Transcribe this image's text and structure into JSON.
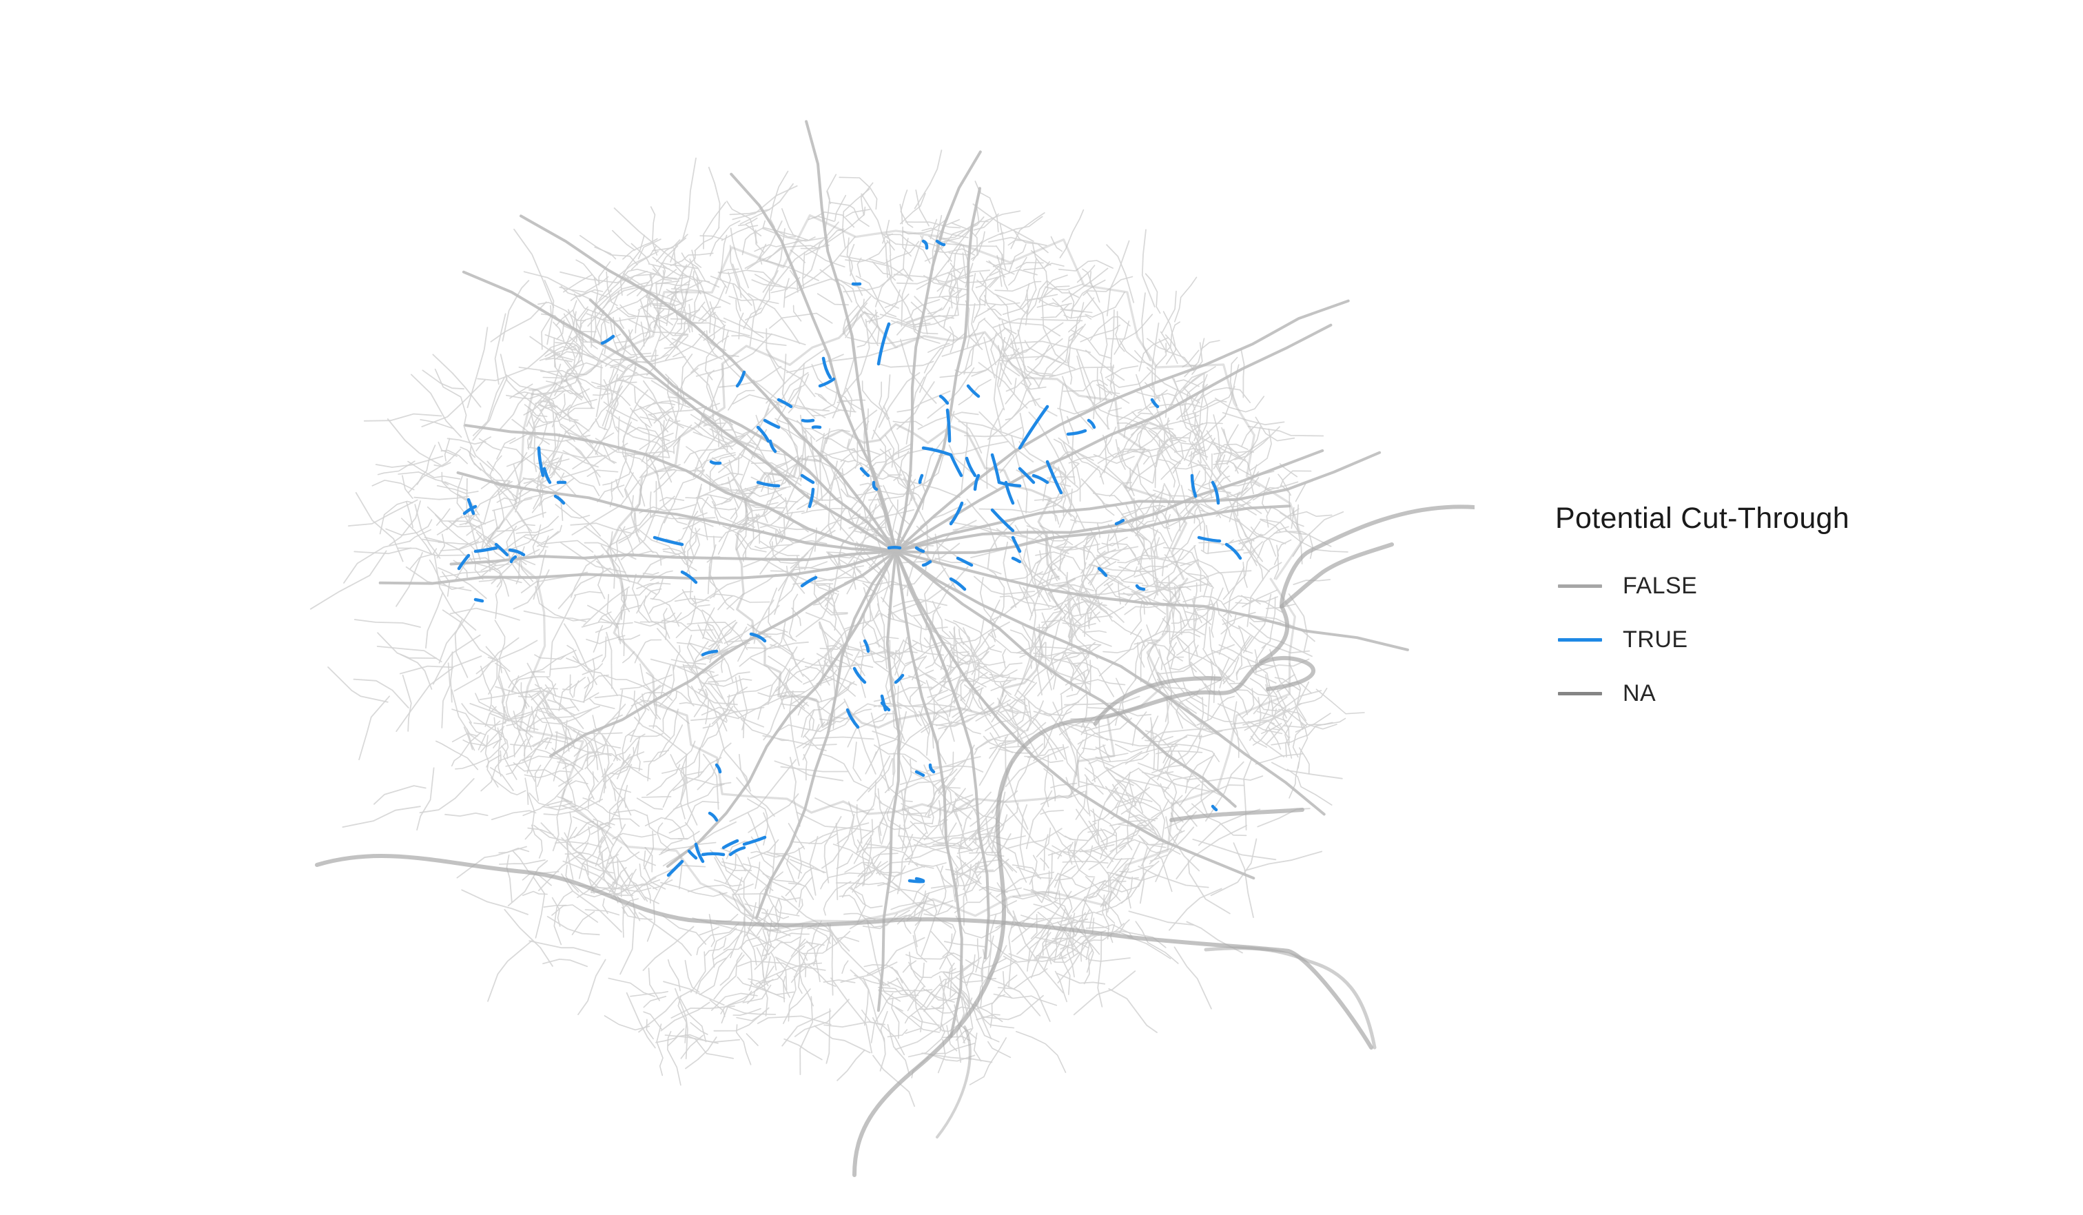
{
  "legend": {
    "title": "Potential Cut-Through",
    "items": [
      {
        "label": "FALSE",
        "color": "#a6a6a6"
      },
      {
        "label": "TRUE",
        "color": "#1e88e5"
      },
      {
        "label": "NA",
        "color": "#858585"
      }
    ]
  },
  "map": {
    "background": "#ffffff",
    "colors": {
      "minor_road": "#d2d2d2",
      "major_road": "#bdbdbd",
      "motorway": "#a8a8a8",
      "cut_through": "#1e88e5"
    }
  }
}
